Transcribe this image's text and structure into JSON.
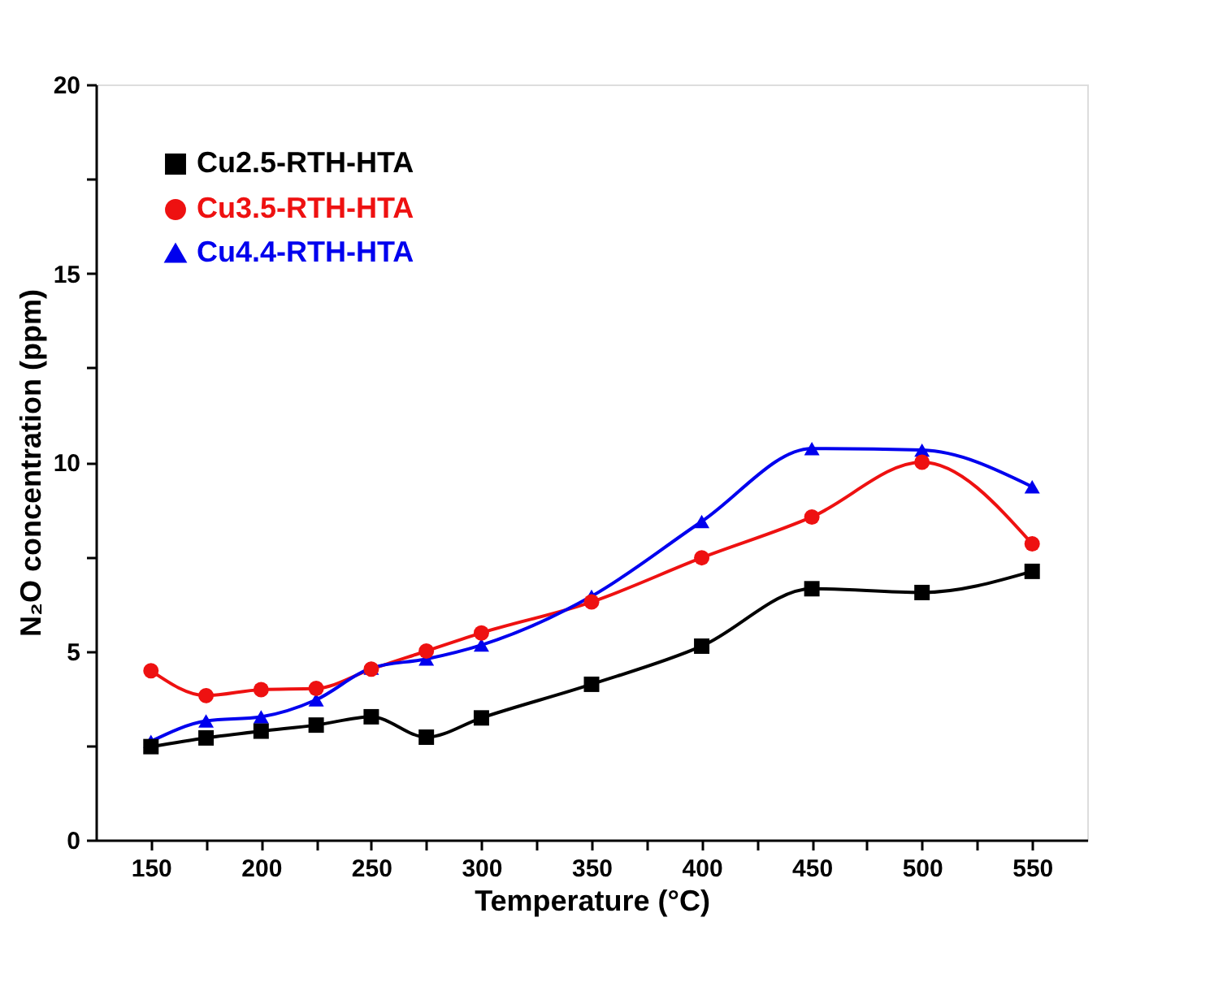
{
  "chart_data": {
    "type": "line",
    "xlabel": "Temperature (°C)",
    "ylabel": "N₂O concentration (ppm)",
    "x": [
      150,
      175,
      200,
      225,
      250,
      275,
      300,
      350,
      400,
      450,
      500,
      550
    ],
    "series": [
      {
        "name": "Cu2.5-RTH-HTA",
        "color": "#000000",
        "marker": "square",
        "values": [
          2.47,
          2.7,
          2.88,
          3.04,
          3.26,
          2.72,
          3.23,
          4.12,
          5.13,
          6.65,
          6.55,
          7.11
        ]
      },
      {
        "name": "Cu3.5-RTH-HTA",
        "color": "#ee1111",
        "marker": "circle",
        "values": [
          4.48,
          3.82,
          3.98,
          4.01,
          4.52,
          5.0,
          5.48,
          6.3,
          7.47,
          8.55,
          10.0,
          7.84
        ]
      },
      {
        "name": "Cu4.4-RTH-HTA",
        "color": "#0000ee",
        "marker": "triangle",
        "values": [
          2.61,
          3.15,
          3.26,
          3.71,
          4.55,
          4.79,
          5.16,
          6.45,
          8.43,
          10.36,
          10.32,
          9.35
        ]
      }
    ],
    "xlim": [
      125,
      575
    ],
    "xticks": [
      150,
      {
        "value": 175,
        "label": null
      },
      200,
      {
        "value": 225,
        "label": null
      },
      250,
      {
        "value": 275,
        "label": null
      },
      300,
      {
        "value": 325,
        "label": null
      },
      350,
      {
        "value": 375,
        "label": null
      },
      400,
      {
        "value": 425,
        "label": null
      },
      450,
      {
        "value": 475,
        "label": null
      },
      500,
      {
        "value": 525,
        "label": null
      },
      550
    ],
    "ylim": [
      0,
      20
    ],
    "yticks": [
      0,
      {
        "value": 2.5,
        "label": null
      },
      5,
      {
        "value": 7.5,
        "label": null
      },
      10,
      {
        "value": 12.5,
        "label": null
      },
      15,
      {
        "value": 17.5,
        "label": null
      },
      20
    ],
    "grid": false,
    "legend": "top left",
    "line_style": "solid"
  }
}
